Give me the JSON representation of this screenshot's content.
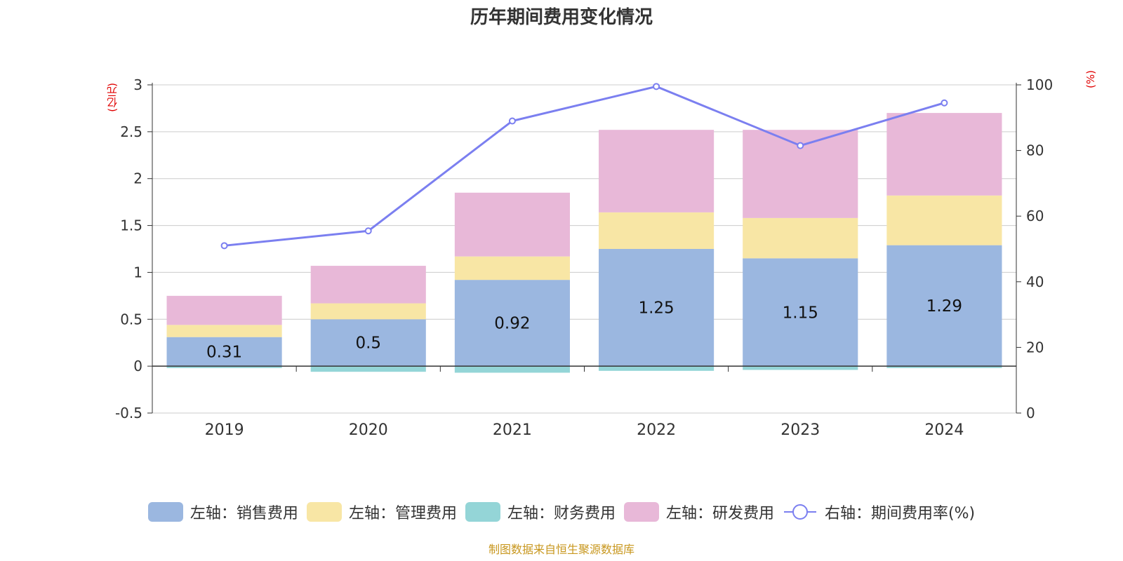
{
  "chart_data": {
    "type": "bar",
    "title": "历年期间费用变化情况",
    "categories": [
      "2019",
      "2020",
      "2021",
      "2022",
      "2023",
      "2024"
    ],
    "left_axis": {
      "unit": "(亿元)",
      "ylim": [
        -0.5,
        3
      ],
      "ticks": [
        "-0.5",
        "0",
        "0.5",
        "1",
        "1.5",
        "2",
        "2.5",
        "3"
      ]
    },
    "right_axis": {
      "unit": "(%)",
      "ylim": [
        0,
        100
      ],
      "ticks": [
        "0",
        "20",
        "40",
        "60",
        "80",
        "100"
      ]
    },
    "series": [
      {
        "name": "左轴：销售费用",
        "axis": "left",
        "stack": true,
        "color": "#9bb7e0",
        "values": [
          0.31,
          0.5,
          0.92,
          1.25,
          1.15,
          1.29
        ],
        "labels": [
          "0.31",
          "0.5",
          "0.92",
          "1.25",
          "1.15",
          "1.29"
        ]
      },
      {
        "name": "左轴：管理费用",
        "axis": "left",
        "stack": true,
        "color": "#f8e6a5",
        "values": [
          0.13,
          0.17,
          0.25,
          0.39,
          0.43,
          0.53
        ]
      },
      {
        "name": "左轴：财务费用",
        "axis": "left",
        "stack": true,
        "color": "#94d5d7",
        "values": [
          -0.02,
          -0.06,
          -0.07,
          -0.05,
          -0.04,
          -0.02
        ]
      },
      {
        "name": "左轴：研发费用",
        "axis": "left",
        "stack": true,
        "color": "#e8b8d8",
        "values": [
          0.31,
          0.4,
          0.68,
          0.88,
          0.94,
          0.88
        ]
      },
      {
        "name": "右轴：期间费用率(%)",
        "axis": "right",
        "type": "line",
        "color": "#7b7ff0",
        "values": [
          51,
          55.5,
          89,
          99.5,
          81.5,
          94.5
        ]
      }
    ]
  },
  "source": "制图数据来自恒生聚源数据库"
}
